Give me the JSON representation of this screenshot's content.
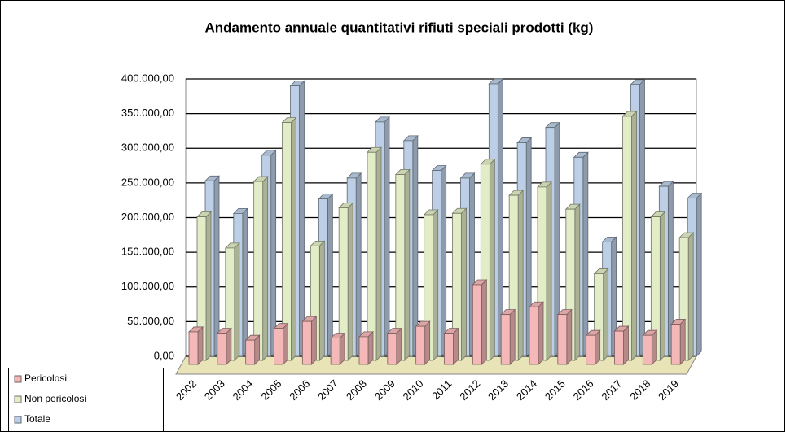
{
  "chart_data": {
    "type": "bar",
    "title": "Andamento annuale quantitativi rifiuti speciali prodotti (kg)",
    "categories": [
      "2002",
      "2003",
      "2004",
      "2005",
      "2006",
      "2007",
      "2008",
      "2009",
      "2010",
      "2011",
      "2012",
      "2013",
      "2014",
      "2015",
      "2016",
      "2017",
      "2018",
      "2019"
    ],
    "series": [
      {
        "name": "Pericolosi",
        "color": "#f4b8b8",
        "values": [
          47000,
          45000,
          35000,
          52000,
          62000,
          38000,
          40000,
          45000,
          55000,
          45000,
          115000,
          72000,
          83000,
          72000,
          42000,
          48000,
          42000,
          58000
        ]
      },
      {
        "name": "Non pericolosi",
        "color": "#e2ecc6",
        "values": [
          207000,
          162000,
          258000,
          343000,
          165000,
          220000,
          300000,
          268000,
          210000,
          212000,
          283000,
          238000,
          250000,
          218000,
          125000,
          352000,
          207000,
          177000
        ]
      },
      {
        "name": "Totale",
        "color": "#bccfe6",
        "values": [
          253000,
          206000,
          290000,
          390000,
          227000,
          257000,
          338000,
          311000,
          268000,
          257000,
          393000,
          308000,
          330000,
          287000,
          165000,
          392000,
          245000,
          228000
        ]
      }
    ],
    "ylim": [
      0,
      400000
    ],
    "yticks": [
      {
        "value": 0,
        "label": "0,00"
      },
      {
        "value": 50000,
        "label": "50.000,00"
      },
      {
        "value": 100000,
        "label": "100.000,00"
      },
      {
        "value": 150000,
        "label": "150.000,00"
      },
      {
        "value": 200000,
        "label": "200.000,00"
      },
      {
        "value": 250000,
        "label": "250.000,00"
      },
      {
        "value": 300000,
        "label": "300.000,00"
      },
      {
        "value": 350000,
        "label": "350.000,00"
      },
      {
        "value": 400000,
        "label": "400.000,00"
      }
    ],
    "grid": true,
    "legend": "bottom-left"
  }
}
